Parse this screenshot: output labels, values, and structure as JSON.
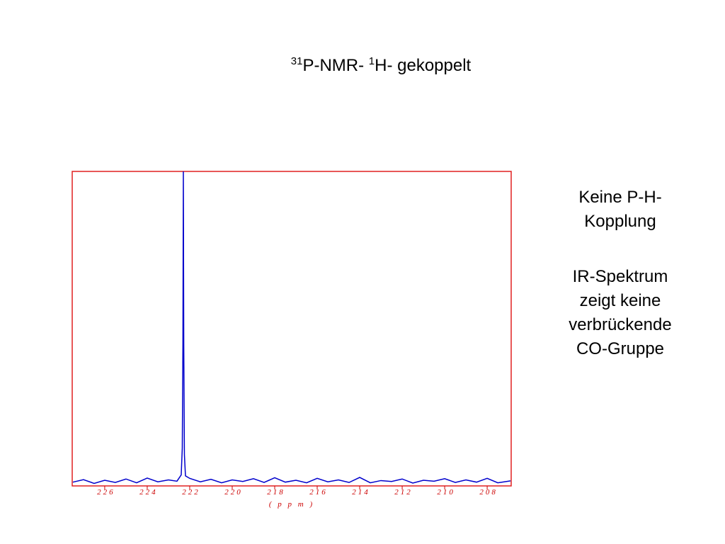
{
  "title": [
    {
      "text": "31",
      "sup": true
    },
    {
      "text": "P-NMR- ",
      "sup": false
    },
    {
      "text": "1",
      "sup": true
    },
    {
      "text": "H- gekoppelt",
      "sup": false
    }
  ],
  "notes": [
    [
      "Keine P-H-",
      "Kopplung"
    ],
    [
      "IR-Spektrum",
      "zeigt keine",
      "verbrückende",
      "CO-Gruppe"
    ]
  ],
  "chart_data": {
    "type": "line",
    "x_label": "( p p m )",
    "x": [
      227.5,
      227.0,
      226.5,
      226.0,
      225.5,
      225.0,
      224.5,
      224.0,
      223.5,
      223.0,
      222.6,
      222.4,
      222.35,
      222.32,
      222.3,
      222.28,
      222.25,
      222.2,
      222.0,
      221.5,
      221.0,
      220.5,
      220.0,
      219.5,
      219.0,
      218.5,
      218.0,
      217.5,
      217.0,
      216.5,
      216.0,
      215.5,
      215.0,
      214.5,
      214.0,
      213.5,
      213.0,
      212.5,
      212.0,
      211.5,
      211.0,
      210.5,
      210.0,
      209.5,
      209.0,
      208.5,
      208.0,
      207.5,
      206.9
    ],
    "series": [
      {
        "name": "31P",
        "color": "#0000cc",
        "values": [
          1.2,
          2.0,
          0.8,
          1.8,
          1.1,
          2.2,
          1.0,
          2.5,
          1.3,
          1.9,
          1.5,
          3.5,
          12,
          45,
          100,
          45,
          10,
          3.2,
          2.4,
          1.3,
          2.1,
          1.0,
          1.9,
          1.4,
          2.3,
          1.1,
          2.6,
          1.2,
          1.8,
          1.0,
          2.4,
          1.3,
          1.9,
          1.1,
          2.7,
          1.0,
          1.7,
          1.4,
          2.2,
          0.9,
          1.8,
          1.5,
          2.3,
          1.1,
          1.9,
          1.2,
          2.4,
          1.0,
          1.6
        ]
      }
    ],
    "xlim": [
      227.53,
      206.87
    ],
    "ylim": [
      0,
      100
    ],
    "xticks": [
      226,
      224,
      222,
      220,
      218,
      216,
      214,
      212,
      210,
      208
    ],
    "frame_color": "#e02020",
    "tick_color": "#cc0000"
  }
}
